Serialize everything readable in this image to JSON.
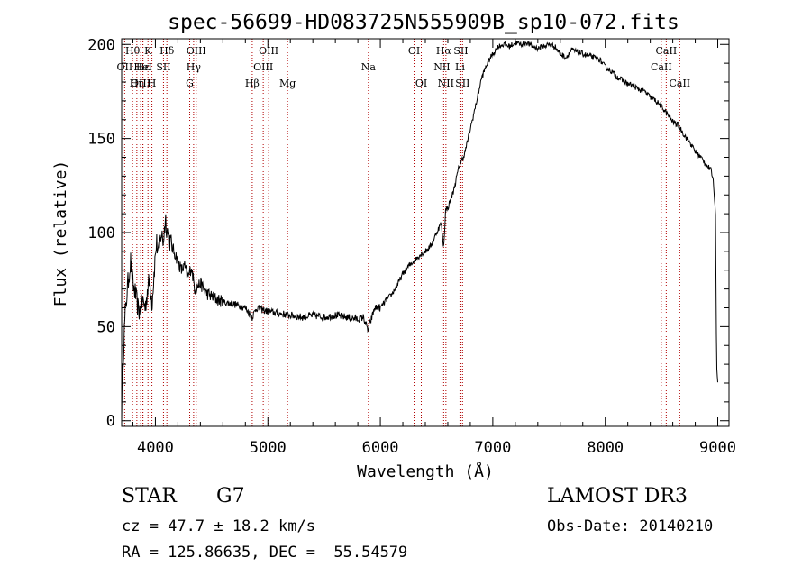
{
  "chart_data": {
    "type": "line",
    "title": "spec-56699-HD083725N555909B_sp10-072.fits",
    "xlabel": "Wavelength (Å)",
    "ylabel": "Flux (relative)",
    "xlim": [
      3700,
      9100
    ],
    "ylim": [
      -3,
      203
    ],
    "xticks": [
      4000,
      5000,
      6000,
      7000,
      8000,
      9000
    ],
    "xtick_labels": [
      "4000",
      "5000",
      "6000",
      "7000",
      "8000",
      "9000"
    ],
    "yticks": [
      0,
      50,
      100,
      150,
      200
    ],
    "ytick_labels": [
      "0",
      "50",
      "100",
      "150",
      "200"
    ],
    "grid": false,
    "series": [
      {
        "name": "spectrum",
        "x": [
          3700,
          3710,
          3730,
          3750,
          3780,
          3800,
          3820,
          3850,
          3870,
          3890,
          3910,
          3930,
          3950,
          3970,
          3990,
          4010,
          4030,
          4050,
          4070,
          4090,
          4100,
          4120,
          4150,
          4180,
          4200,
          4230,
          4260,
          4290,
          4320,
          4350,
          4400,
          4450,
          4500,
          4600,
          4700,
          4800,
          4860,
          4900,
          5000,
          5100,
          5200,
          5300,
          5400,
          5500,
          5600,
          5700,
          5800,
          5850,
          5890,
          5950,
          6000,
          6050,
          6100,
          6150,
          6200,
          6250,
          6300,
          6350,
          6400,
          6450,
          6500,
          6540,
          6563,
          6580,
          6600,
          6650,
          6700,
          6750,
          6800,
          6850,
          6900,
          6950,
          7000,
          7050,
          7100,
          7150,
          7200,
          7250,
          7300,
          7350,
          7400,
          7450,
          7500,
          7550,
          7600,
          7650,
          7700,
          7750,
          7800,
          7850,
          7900,
          7950,
          8000,
          8050,
          8100,
          8150,
          8200,
          8250,
          8300,
          8350,
          8400,
          8450,
          8500,
          8550,
          8600,
          8650,
          8700,
          8750,
          8800,
          8850,
          8900,
          8940,
          8960,
          8980,
          8990,
          9000
        ],
        "y": [
          5,
          30,
          55,
          70,
          85,
          72,
          68,
          58,
          60,
          64,
          60,
          70,
          75,
          62,
          80,
          95,
          88,
          100,
          95,
          108,
          103,
          97,
          92,
          88,
          85,
          80,
          82,
          76,
          82,
          70,
          73,
          68,
          66,
          63,
          62,
          60,
          55,
          60,
          58,
          57,
          56,
          55,
          56,
          55,
          56,
          55,
          54,
          55,
          48,
          60,
          60,
          64,
          67,
          72,
          78,
          82,
          85,
          88,
          90,
          93,
          100,
          105,
          92,
          112,
          113,
          122,
          135,
          142,
          155,
          168,
          182,
          190,
          195,
          199,
          200,
          199,
          201,
          200,
          201,
          199,
          198,
          199,
          200,
          199,
          195,
          193,
          197,
          196,
          195,
          194,
          193,
          192,
          188,
          186,
          183,
          181,
          179,
          178,
          176,
          175,
          172,
          170,
          167,
          163,
          159,
          157,
          152,
          148,
          143,
          140,
          136,
          133,
          128,
          110,
          30,
          20
        ]
      }
    ],
    "line_markers": [
      {
        "label": "Hθ",
        "x": 3797,
        "row": 1
      },
      {
        "label": "OII",
        "x": 3727,
        "row": 2
      },
      {
        "label": "OIII",
        "x": 3869,
        "row": 3
      },
      {
        "label": "Hε",
        "x": 3889,
        "row": 2
      },
      {
        "label": "K",
        "x": 3934,
        "row": 1
      },
      {
        "label": "Hη",
        "x": 3835,
        "row": 3
      },
      {
        "label": "HeI",
        "x": 3889,
        "row": 2
      },
      {
        "label": "H",
        "x": 3969,
        "row": 3
      },
      {
        "label": "SII",
        "x": 4072,
        "row": 2
      },
      {
        "label": "Hδ",
        "x": 4102,
        "row": 1
      },
      {
        "label": "OIII",
        "x": 4363,
        "row": 1
      },
      {
        "label": "Hγ",
        "x": 4340,
        "row": 2
      },
      {
        "label": "G",
        "x": 4305,
        "row": 3
      },
      {
        "label": "Hβ",
        "x": 4861,
        "row": 3
      },
      {
        "label": "OIII",
        "x": 5007,
        "row": 1
      },
      {
        "label": "OIII",
        "x": 4959,
        "row": 2
      },
      {
        "label": "Mg",
        "x": 5175,
        "row": 3
      },
      {
        "label": "Na",
        "x": 5894,
        "row": 2
      },
      {
        "label": "OI",
        "x": 6300,
        "row": 1
      },
      {
        "label": "OI",
        "x": 6364,
        "row": 3
      },
      {
        "label": "Hα",
        "x": 6563,
        "row": 1
      },
      {
        "label": "NII",
        "x": 6548,
        "row": 2
      },
      {
        "label": "NII",
        "x": 6583,
        "row": 3
      },
      {
        "label": "SII",
        "x": 6716,
        "row": 1
      },
      {
        "label": "Li",
        "x": 6708,
        "row": 2
      },
      {
        "label": "SII",
        "x": 6731,
        "row": 3
      },
      {
        "label": "CaII",
        "x": 8542,
        "row": 1
      },
      {
        "label": "CaII",
        "x": 8498,
        "row": 2
      },
      {
        "label": "CaII",
        "x": 8662,
        "row": 3
      }
    ]
  },
  "info": {
    "class_label": "STAR",
    "subclass": "G7",
    "cz_text": "cz = 47.7 ± 18.2 km/s",
    "coords_text": "RA = 125.86635, DEC =  55.54579",
    "survey": "LAMOST DR3",
    "obs_date_text": "Obs-Date: 20140210"
  }
}
